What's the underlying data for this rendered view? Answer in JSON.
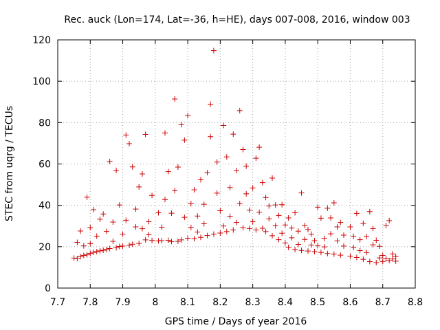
{
  "chart_data": {
    "type": "scatter",
    "title": "Rec. auck (Lon=174, Lat=-36, h=HE), days 007-008, 2016, window 003",
    "xlabel": "GPS time / Days of year 2016",
    "ylabel": "STEC from uqrg / TECUs",
    "xlim": [
      7.7,
      8.8
    ],
    "ylim": [
      0,
      120
    ],
    "xticks": [
      "7.7",
      "7.8",
      "7.9",
      "8",
      "8.1",
      "8.2",
      "8.3",
      "8.4",
      "8.5",
      "8.6",
      "8.7",
      "8.8"
    ],
    "yticks": [
      "0",
      "20",
      "40",
      "60",
      "80",
      "100",
      "120"
    ],
    "grid": true,
    "marker": "+",
    "colors": {
      "series": "#cc0000",
      "grid": "#a0a0a0",
      "axis": "#000000"
    },
    "series": [
      {
        "points": [
          [
            7.75,
            14.5
          ],
          [
            7.76,
            14.3
          ],
          [
            7.76,
            22.1
          ],
          [
            7.77,
            15.2
          ],
          [
            7.77,
            27.6
          ],
          [
            7.78,
            15.8
          ],
          [
            7.78,
            20.4
          ],
          [
            7.79,
            16.1
          ],
          [
            7.79,
            43.9
          ],
          [
            7.8,
            16.8
          ],
          [
            7.8,
            21.5
          ],
          [
            7.8,
            29.2
          ],
          [
            7.81,
            17.3
          ],
          [
            7.81,
            37.9
          ],
          [
            7.82,
            17.6
          ],
          [
            7.82,
            25.1
          ],
          [
            7.83,
            18.0
          ],
          [
            7.83,
            33.3
          ],
          [
            7.84,
            18.3
          ],
          [
            7.84,
            35.8
          ],
          [
            7.85,
            18.6
          ],
          [
            7.85,
            27.4
          ],
          [
            7.86,
            61.2
          ],
          [
            7.86,
            19.1
          ],
          [
            7.87,
            22.6
          ],
          [
            7.87,
            31.9
          ],
          [
            7.88,
            19.5
          ],
          [
            7.88,
            56.9
          ],
          [
            7.89,
            20.1
          ],
          [
            7.89,
            40.2
          ],
          [
            7.9,
            20.3
          ],
          [
            7.9,
            26.1
          ],
          [
            7.91,
            74.0
          ],
          [
            7.91,
            32.8
          ],
          [
            7.92,
            20.7
          ],
          [
            7.92,
            69.8
          ],
          [
            7.93,
            21.2
          ],
          [
            7.93,
            58.6
          ],
          [
            7.94,
            29.6
          ],
          [
            7.94,
            38.2
          ],
          [
            7.95,
            21.6
          ],
          [
            7.95,
            48.9
          ],
          [
            7.96,
            28.7
          ],
          [
            7.96,
            55.2
          ],
          [
            7.97,
            74.3
          ],
          [
            7.97,
            23.3
          ],
          [
            7.98,
            32.1
          ],
          [
            7.98,
            25.8
          ],
          [
            7.99,
            23.0
          ],
          [
            7.99,
            44.8
          ],
          [
            8.01,
            22.8
          ],
          [
            8.01,
            36.4
          ],
          [
            8.02,
            22.9
          ],
          [
            8.02,
            29.4
          ],
          [
            8.03,
            75.0
          ],
          [
            8.03,
            42.8
          ],
          [
            8.04,
            23.1
          ],
          [
            8.04,
            56.3
          ],
          [
            8.05,
            22.5
          ],
          [
            8.05,
            36.2
          ],
          [
            8.06,
            91.4
          ],
          [
            8.06,
            47.1
          ],
          [
            8.07,
            22.6
          ],
          [
            8.07,
            58.5
          ],
          [
            8.08,
            23.3
          ],
          [
            8.08,
            79.0
          ],
          [
            8.09,
            34.2
          ],
          [
            8.09,
            71.5
          ],
          [
            8.1,
            83.4
          ],
          [
            8.1,
            24.1
          ],
          [
            8.11,
            40.8
          ],
          [
            8.11,
            29.3
          ],
          [
            8.12,
            23.9
          ],
          [
            8.12,
            47.5
          ],
          [
            8.13,
            34.8
          ],
          [
            8.13,
            27.1
          ],
          [
            8.14,
            24.5
          ],
          [
            8.14,
            52.4
          ],
          [
            8.15,
            31.1
          ],
          [
            8.15,
            40.5
          ],
          [
            8.16,
            25.4
          ],
          [
            8.16,
            55.8
          ],
          [
            8.17,
            88.9
          ],
          [
            8.17,
            73.2
          ],
          [
            8.18,
            114.8
          ],
          [
            8.18,
            26.1
          ],
          [
            8.19,
            60.9
          ],
          [
            8.19,
            45.9
          ],
          [
            8.2,
            26.6
          ],
          [
            8.2,
            37.4
          ],
          [
            8.21,
            78.6
          ],
          [
            8.21,
            30.0
          ],
          [
            8.22,
            27.3
          ],
          [
            8.22,
            63.4
          ],
          [
            8.23,
            34.7
          ],
          [
            8.23,
            48.6
          ],
          [
            8.24,
            28.1
          ],
          [
            8.24,
            74.4
          ],
          [
            8.25,
            56.8
          ],
          [
            8.25,
            31.7
          ],
          [
            8.26,
            85.8
          ],
          [
            8.26,
            40.9
          ],
          [
            8.27,
            67.0
          ],
          [
            8.27,
            29.2
          ],
          [
            8.28,
            58.9
          ],
          [
            8.28,
            45.6
          ],
          [
            8.29,
            28.8
          ],
          [
            8.29,
            37.7
          ],
          [
            8.3,
            48.4
          ],
          [
            8.3,
            32.1
          ],
          [
            8.31,
            28.1
          ],
          [
            8.31,
            62.8
          ],
          [
            8.32,
            68.1
          ],
          [
            8.32,
            36.7
          ],
          [
            8.33,
            51.0
          ],
          [
            8.33,
            28.9
          ],
          [
            8.34,
            43.8
          ],
          [
            8.34,
            27.3
          ],
          [
            8.35,
            33.5
          ],
          [
            8.35,
            39.7
          ],
          [
            8.36,
            53.2
          ],
          [
            8.36,
            25.3
          ],
          [
            8.37,
            30.1
          ],
          [
            8.37,
            40.2
          ],
          [
            8.38,
            23.4
          ],
          [
            8.38,
            35.1
          ],
          [
            8.39,
            26.5
          ],
          [
            8.39,
            40.3
          ],
          [
            8.4,
            21.8
          ],
          [
            8.4,
            30.5
          ],
          [
            8.41,
            19.7
          ],
          [
            8.41,
            33.9
          ],
          [
            8.42,
            24.3
          ],
          [
            8.42,
            29.0
          ],
          [
            8.43,
            18.6
          ],
          [
            8.43,
            36.4
          ],
          [
            8.44,
            21.1
          ],
          [
            8.44,
            27.5
          ],
          [
            8.45,
            46.0
          ],
          [
            8.45,
            18.2
          ],
          [
            8.46,
            30.2
          ],
          [
            8.46,
            23.5
          ],
          [
            8.47,
            17.9
          ],
          [
            8.47,
            28.3
          ],
          [
            8.48,
            20.8
          ],
          [
            8.48,
            26.1
          ],
          [
            8.49,
            17.6
          ],
          [
            8.49,
            22.9
          ],
          [
            8.5,
            39.1
          ],
          [
            8.5,
            20.5
          ],
          [
            8.51,
            17.2
          ],
          [
            8.51,
            33.8
          ],
          [
            8.52,
            24.0
          ],
          [
            8.52,
            19.9
          ],
          [
            8.53,
            38.6
          ],
          [
            8.53,
            16.7
          ],
          [
            8.54,
            26.2
          ],
          [
            8.54,
            33.9
          ],
          [
            8.55,
            16.4
          ],
          [
            8.55,
            41.2
          ],
          [
            8.56,
            29.6
          ],
          [
            8.56,
            22.8
          ],
          [
            8.57,
            15.9
          ],
          [
            8.57,
            31.7
          ],
          [
            8.58,
            20.3
          ],
          [
            8.58,
            25.6
          ],
          [
            8.6,
            15.4
          ],
          [
            8.6,
            29.6
          ],
          [
            8.61,
            19.6
          ],
          [
            8.61,
            25.0
          ],
          [
            8.62,
            14.8
          ],
          [
            8.62,
            36.1
          ],
          [
            8.63,
            23.4
          ],
          [
            8.63,
            18.1
          ],
          [
            8.64,
            13.9
          ],
          [
            8.64,
            31.3
          ],
          [
            8.65,
            17.2
          ],
          [
            8.65,
            24.9
          ],
          [
            8.66,
            12.8
          ],
          [
            8.66,
            37.0
          ],
          [
            8.67,
            20.9
          ],
          [
            8.67,
            28.8
          ],
          [
            8.68,
            12.3
          ],
          [
            8.68,
            23.1
          ],
          [
            8.69,
            14.6
          ],
          [
            8.69,
            20.2
          ],
          [
            8.7,
            12.9
          ],
          [
            8.7,
            15.8
          ],
          [
            8.71,
            14.2
          ],
          [
            8.71,
            30.2
          ],
          [
            8.72,
            13.3
          ],
          [
            8.72,
            32.6
          ],
          [
            8.73,
            14.1
          ],
          [
            8.73,
            16.5
          ],
          [
            8.74,
            13.0
          ],
          [
            8.74,
            15.3
          ]
        ]
      }
    ]
  }
}
